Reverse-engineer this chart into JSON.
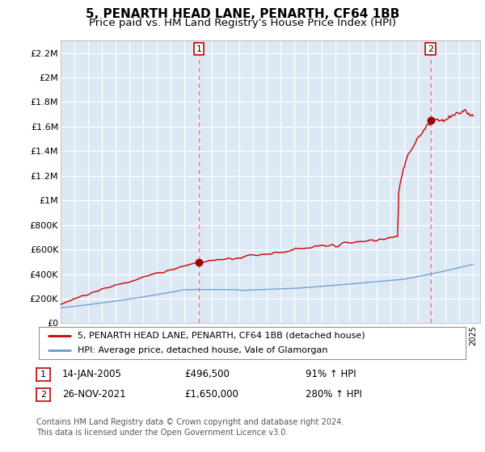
{
  "title": "5, PENARTH HEAD LANE, PENARTH, CF64 1BB",
  "subtitle": "Price paid vs. HM Land Registry's House Price Index (HPI)",
  "title_fontsize": 11,
  "subtitle_fontsize": 9.5,
  "background_color": "#ffffff",
  "plot_bg_color": "#dce9f5",
  "grid_color": "#ffffff",
  "ylim": [
    0,
    2300000
  ],
  "yticks": [
    0,
    200000,
    400000,
    600000,
    800000,
    1000000,
    1200000,
    1400000,
    1600000,
    1800000,
    2000000,
    2200000
  ],
  "ytick_labels": [
    "£0",
    "£200K",
    "£400K",
    "£600K",
    "£800K",
    "£1M",
    "£1.2M",
    "£1.4M",
    "£1.6M",
    "£1.8M",
    "£2M",
    "£2.2M"
  ],
  "xstart_year": 1995,
  "xend_year": 2025,
  "sale1_year": 2005.04,
  "sale1_price": 496500,
  "sale2_year": 2021.9,
  "sale2_price": 1650000,
  "line_red_color": "#cc0000",
  "line_blue_color": "#6699cc",
  "vline_color": "#ff6666",
  "marker_color": "#990000",
  "legend_line1": "5, PENARTH HEAD LANE, PENARTH, CF64 1BB (detached house)",
  "legend_line2": "HPI: Average price, detached house, Vale of Glamorgan",
  "annot1_label": "1",
  "annot1_date": "14-JAN-2005",
  "annot1_price": "£496,500",
  "annot1_pct": "91% ↑ HPI",
  "annot2_label": "2",
  "annot2_date": "26-NOV-2021",
  "annot2_price": "£1,650,000",
  "annot2_pct": "280% ↑ HPI",
  "footer": "Contains HM Land Registry data © Crown copyright and database right 2024.\nThis data is licensed under the Open Government Licence v3.0."
}
